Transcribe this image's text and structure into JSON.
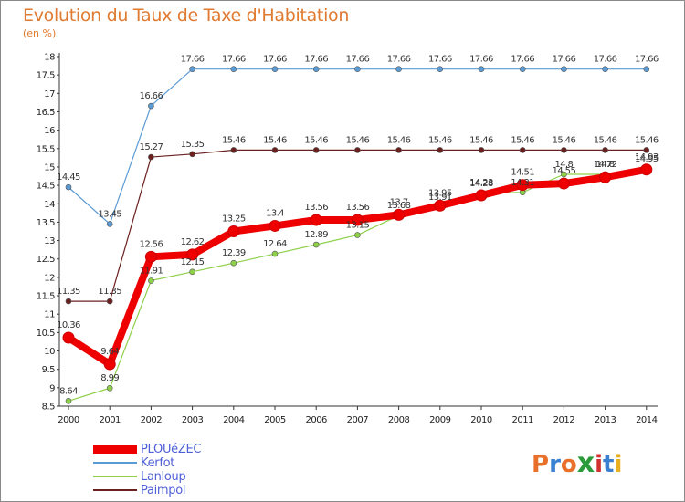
{
  "header": {
    "title": "Evolution du Taux de Taxe d'Habitation",
    "subtitle": "(en %)"
  },
  "logo": {
    "text": "ProXiti",
    "letters": [
      "P",
      "r",
      "o",
      "x",
      "i",
      "t",
      "i"
    ],
    "colors": [
      "#e8702a",
      "#3a7fd0",
      "#e8702a",
      "#2a9a3a",
      "#d03030",
      "#3a7fd0",
      "#e8b020"
    ]
  },
  "chart_data": {
    "type": "line",
    "title": "Evolution du Taux de Taxe d'Habitation",
    "ylabel": "(en %)",
    "xlabel": "",
    "x": [
      "2000",
      "2001",
      "2002",
      "2003",
      "2004",
      "2005",
      "2006",
      "2007",
      "2008",
      "2009",
      "2010",
      "2011",
      "2012",
      "2013",
      "2014"
    ],
    "ylim": [
      8.5,
      18
    ],
    "yticks": [
      8.5,
      9,
      9.5,
      10,
      10.5,
      11,
      11.5,
      12,
      12.5,
      13,
      13.5,
      14,
      14.5,
      15,
      15.5,
      16,
      16.5,
      17,
      17.5,
      18
    ],
    "grid": false,
    "legend_position": "bottom-left",
    "series": [
      {
        "name": "PLOUéZEC",
        "color": "#ee0000",
        "style": "thick",
        "values": [
          10.36,
          9.64,
          12.56,
          12.62,
          13.25,
          13.4,
          13.56,
          13.56,
          13.7,
          13.95,
          14.23,
          14.51,
          14.55,
          14.72,
          14.93
        ],
        "labels": [
          "10.36",
          "9.64",
          "12.56",
          "12.62",
          "13.25",
          "13.4",
          "13.56",
          "13.56",
          "13.7",
          "13.95",
          "14.23",
          "14.51",
          "14.55",
          "14.72",
          "14.93"
        ]
      },
      {
        "name": "Kerfot",
        "color": "#5b9bd5",
        "style": "thin",
        "values": [
          14.45,
          13.45,
          16.66,
          17.66,
          17.66,
          17.66,
          17.66,
          17.66,
          17.66,
          17.66,
          17.66,
          17.66,
          17.66,
          17.66,
          17.66
        ],
        "labels": [
          "14.45",
          "13.45",
          "16.66",
          "17.66",
          "17.66",
          "17.66",
          "17.66",
          "17.66",
          "17.66",
          "17.66",
          "17.66",
          "17.66",
          "17.66",
          "17.66",
          "17.66"
        ]
      },
      {
        "name": "Lanloup",
        "color": "#8ed04a",
        "style": "thin",
        "values": [
          8.64,
          8.99,
          11.91,
          12.15,
          12.39,
          12.64,
          12.89,
          13.15,
          13.68,
          13.91,
          14.28,
          14.31,
          14.8,
          14.8,
          14.95
        ],
        "labels": [
          "8.64",
          "8.99",
          "11.91",
          "12.15",
          "12.39",
          "12.64",
          "12.89",
          "13.15",
          "13.68",
          "13.91",
          "14.28",
          "14.31",
          "14.8",
          "14.8",
          "14.95"
        ]
      },
      {
        "name": "Paimpol",
        "color": "#6b2020",
        "style": "thin",
        "values": [
          11.35,
          11.35,
          15.27,
          15.35,
          15.46,
          15.46,
          15.46,
          15.46,
          15.46,
          15.46,
          15.46,
          15.46,
          15.46,
          15.46,
          15.46
        ],
        "labels": [
          "11.35",
          "11.35",
          "15.27",
          "15.35",
          "15.46",
          "15.46",
          "15.46",
          "15.46",
          "15.46",
          "15.46",
          "15.46",
          "15.46",
          "15.46",
          "15.46",
          "15.46"
        ]
      }
    ]
  }
}
